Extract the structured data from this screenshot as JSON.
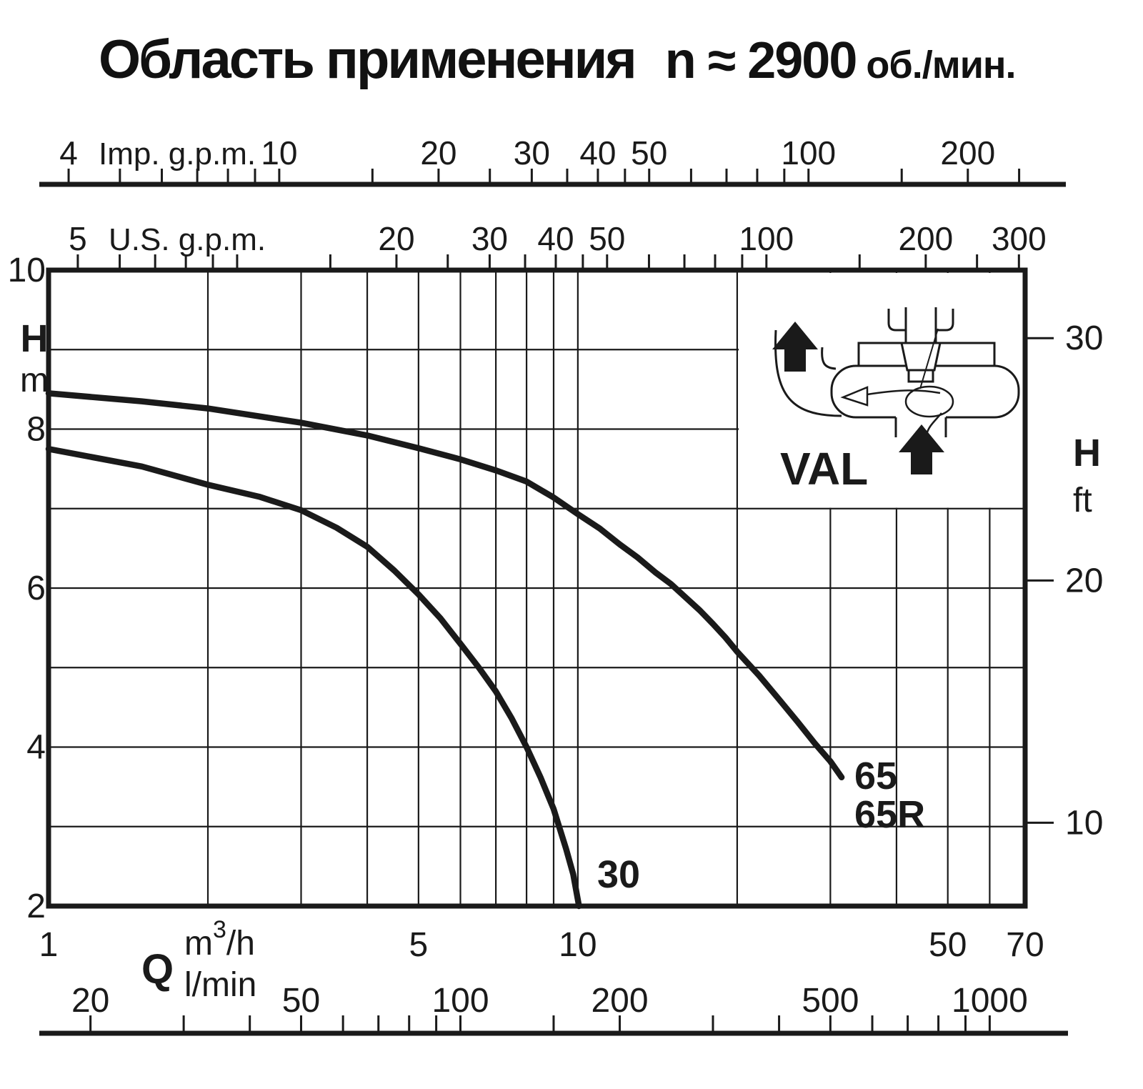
{
  "title": {
    "main": "Область применения",
    "speed": "n ≈ 2900",
    "unit": "об./мин."
  },
  "chart_data": {
    "type": "line",
    "title": "Область применения n ≈ 2900 об./мин.",
    "x_scale": {
      "type": "log",
      "min": 1,
      "max": 70,
      "unit": "m³/h"
    },
    "y_scale": {
      "type": "linear",
      "min": 2,
      "max": 10,
      "unit": "m"
    },
    "colors": {
      "ink": "#1a1a1a",
      "background": "#ffffff"
    },
    "axes": {
      "imp_gpm": {
        "unit_label": "Imp. g.p.m.",
        "per_m3h": 3.666,
        "ticks": [
          4,
          5,
          6,
          7,
          8,
          9,
          10,
          15,
          20,
          25,
          30,
          35,
          40,
          45,
          50,
          60,
          70,
          80,
          90,
          100,
          150,
          200,
          250
        ],
        "labels": [
          4,
          10,
          20,
          30,
          40,
          50,
          100,
          200
        ]
      },
      "us_gpm": {
        "unit_label": "U.S. g.p.m.",
        "per_m3h": 4.403,
        "ticks": [
          5,
          6,
          7,
          8,
          9,
          10,
          15,
          20,
          25,
          30,
          35,
          40,
          45,
          50,
          60,
          70,
          80,
          90,
          100,
          150,
          200,
          250,
          300
        ],
        "labels": [
          5,
          20,
          30,
          40,
          50,
          100,
          200,
          300
        ]
      },
      "h_m": {
        "unit_label_1": "H",
        "unit_label_2": "m",
        "labels": [
          10,
          8,
          6,
          4,
          2
        ],
        "gridlines": [
          3,
          4,
          5,
          6,
          7,
          8,
          9
        ]
      },
      "h_ft": {
        "unit_label_1": "H",
        "unit_label_2": "ft",
        "metres_per_ft": 0.3048,
        "labels": [
          30,
          20,
          10
        ]
      },
      "q_m3h": {
        "symbol": "Q",
        "unit_parts": {
          "base": "m",
          "sup": "3",
          "rest": "/h"
        },
        "labels": [
          1,
          5,
          10,
          50,
          70
        ],
        "gridlines": [
          2,
          3,
          4,
          5,
          6,
          7,
          8,
          9,
          10,
          20,
          30,
          40,
          50,
          60
        ]
      },
      "q_lmin": {
        "unit_label": "l/min",
        "per_m3h": 16.667,
        "ticks": [
          20,
          30,
          40,
          50,
          60,
          70,
          80,
          90,
          100,
          150,
          200,
          300,
          400,
          500,
          600,
          700,
          800,
          900,
          1000
        ],
        "labels": [
          20,
          50,
          100,
          200,
          500,
          1000
        ]
      }
    },
    "series": [
      {
        "name": "30",
        "label": "30",
        "points": [
          [
            1,
            7.75
          ],
          [
            1.5,
            7.53
          ],
          [
            2,
            7.3
          ],
          [
            2.5,
            7.15
          ],
          [
            3,
            6.98
          ],
          [
            3.5,
            6.76
          ],
          [
            4,
            6.52
          ],
          [
            4.5,
            6.22
          ],
          [
            5,
            5.92
          ],
          [
            5.5,
            5.62
          ],
          [
            6,
            5.3
          ],
          [
            6.5,
            5.0
          ],
          [
            7,
            4.7
          ],
          [
            7.5,
            4.36
          ],
          [
            8,
            4.0
          ],
          [
            8.5,
            3.62
          ],
          [
            9,
            3.22
          ],
          [
            9.5,
            2.72
          ],
          [
            9.8,
            2.4
          ],
          [
            10.05,
            2.0
          ]
        ]
      },
      {
        "name": "65 / 65R",
        "label_lines": [
          "65",
          "65R"
        ],
        "points": [
          [
            1,
            8.45
          ],
          [
            1.5,
            8.35
          ],
          [
            2,
            8.26
          ],
          [
            3,
            8.08
          ],
          [
            4,
            7.92
          ],
          [
            5,
            7.76
          ],
          [
            6,
            7.62
          ],
          [
            7,
            7.48
          ],
          [
            8,
            7.34
          ],
          [
            9,
            7.14
          ],
          [
            10,
            6.93
          ],
          [
            11,
            6.75
          ],
          [
            12,
            6.55
          ],
          [
            13,
            6.38
          ],
          [
            14,
            6.2
          ],
          [
            15,
            6.05
          ],
          [
            16,
            5.88
          ],
          [
            17,
            5.72
          ],
          [
            18,
            5.55
          ],
          [
            19,
            5.38
          ],
          [
            20,
            5.2
          ],
          [
            22,
            4.9
          ],
          [
            24,
            4.6
          ],
          [
            26,
            4.32
          ],
          [
            28,
            4.05
          ],
          [
            30,
            3.82
          ],
          [
            31.5,
            3.62
          ]
        ]
      }
    ],
    "inset": {
      "label": "VAL"
    }
  }
}
